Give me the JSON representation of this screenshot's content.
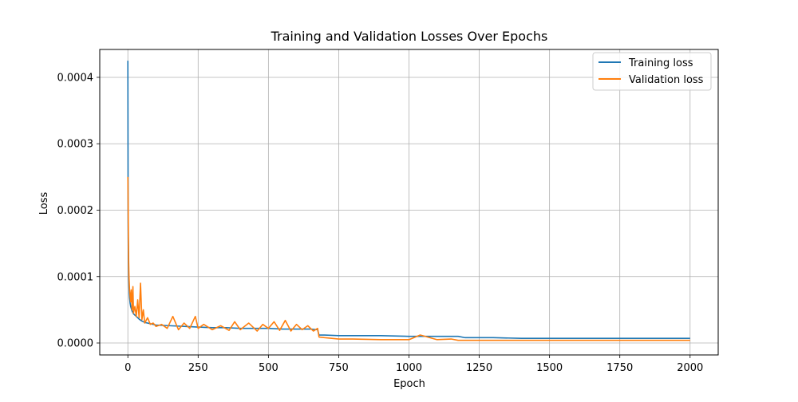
{
  "chart_data": {
    "type": "line",
    "title": "Training and Validation Losses Over Epochs",
    "xlabel": "Epoch",
    "ylabel": "Loss",
    "xlim": [
      -100,
      2100
    ],
    "ylim": [
      -1.8e-05,
      0.0004
    ],
    "ylim_display": [
      -1.8e-05,
      0.000442
    ],
    "xticks": [
      0,
      250,
      500,
      750,
      1000,
      1250,
      1500,
      1750,
      2000
    ],
    "yticks": [
      0.0,
      0.0001,
      0.0002,
      0.0003,
      0.0004
    ],
    "ytick_labels": [
      "0.0000",
      "0.0001",
      "0.0002",
      "0.0003",
      "0.0004"
    ],
    "xtick_labels": [
      "0",
      "250",
      "500",
      "750",
      "1000",
      "1250",
      "1500",
      "1750",
      "2000"
    ],
    "grid": true,
    "legend_position": "top-right",
    "series": [
      {
        "name": "Training loss",
        "color": "#1f77b4",
        "x": [
          0,
          1,
          2,
          3,
          4,
          5,
          6,
          8,
          10,
          15,
          20,
          30,
          40,
          50,
          60,
          80,
          100,
          150,
          200,
          250,
          300,
          350,
          400,
          450,
          500,
          550,
          600,
          650,
          675,
          680,
          700,
          750,
          800,
          900,
          1000,
          1100,
          1150,
          1175,
          1200,
          1300,
          1400,
          1500,
          1600,
          1700,
          1800,
          1900,
          2000
        ],
        "y": [
          0.000425,
          0.00018,
          0.00012,
          0.0001,
          8.5e-05,
          7.5e-05,
          6.8e-05,
          6e-05,
          5.5e-05,
          4.8e-05,
          4.4e-05,
          4e-05,
          3.6e-05,
          3.3e-05,
          3.1e-05,
          2.9e-05,
          2.7e-05,
          2.6e-05,
          2.5e-05,
          2.4e-05,
          2.3e-05,
          2.3e-05,
          2.2e-05,
          2.2e-05,
          2.2e-05,
          2.1e-05,
          2.1e-05,
          2.1e-05,
          2e-05,
          1.2e-05,
          1.2e-05,
          1.1e-05,
          1.1e-05,
          1.1e-05,
          1e-05,
          1e-05,
          1e-05,
          1e-05,
          8e-06,
          8e-06,
          7e-06,
          7e-06,
          7e-06,
          7e-06,
          7e-06,
          7e-06,
          7e-06
        ]
      },
      {
        "name": "Validation loss",
        "color": "#ff7f0e",
        "x": [
          0,
          1,
          2,
          3,
          4,
          5,
          6,
          8,
          10,
          12,
          15,
          18,
          20,
          25,
          30,
          35,
          40,
          45,
          50,
          55,
          60,
          70,
          80,
          90,
          100,
          120,
          140,
          160,
          180,
          200,
          220,
          240,
          250,
          270,
          300,
          330,
          360,
          380,
          400,
          430,
          460,
          480,
          500,
          520,
          540,
          560,
          580,
          600,
          620,
          640,
          660,
          675,
          680,
          700,
          750,
          800,
          900,
          1000,
          1040,
          1100,
          1150,
          1175,
          1200,
          1300,
          1400,
          1500,
          1600,
          1700,
          1800,
          1900,
          2000
        ],
        "y": [
          0.00025,
          0.00021,
          0.00016,
          0.00012,
          0.0001,
          9e-05,
          8e-05,
          7e-05,
          6.2e-05,
          8e-05,
          5e-05,
          8.5e-05,
          4.5e-05,
          5.5e-05,
          4e-05,
          6.5e-05,
          3.8e-05,
          9e-05,
          3.5e-05,
          5e-05,
          3e-05,
          3.8e-05,
          2.8e-05,
          3e-05,
          2.5e-05,
          2.8e-05,
          2.2e-05,
          4e-05,
          2e-05,
          3e-05,
          2.2e-05,
          4e-05,
          2.2e-05,
          2.8e-05,
          2e-05,
          2.6e-05,
          1.9e-05,
          3.2e-05,
          2e-05,
          3e-05,
          1.8e-05,
          2.8e-05,
          2.2e-05,
          3.2e-05,
          1.9e-05,
          3.4e-05,
          1.8e-05,
          2.8e-05,
          2e-05,
          2.6e-05,
          1.8e-05,
          2.2e-05,
          9e-06,
          8e-06,
          6e-06,
          6e-06,
          5e-06,
          5e-06,
          1.2e-05,
          5e-06,
          6e-06,
          4e-06,
          4e-06,
          4e-06,
          4e-06,
          4e-06,
          4e-06,
          4e-06,
          4e-06,
          4e-06,
          4e-06
        ]
      }
    ]
  }
}
